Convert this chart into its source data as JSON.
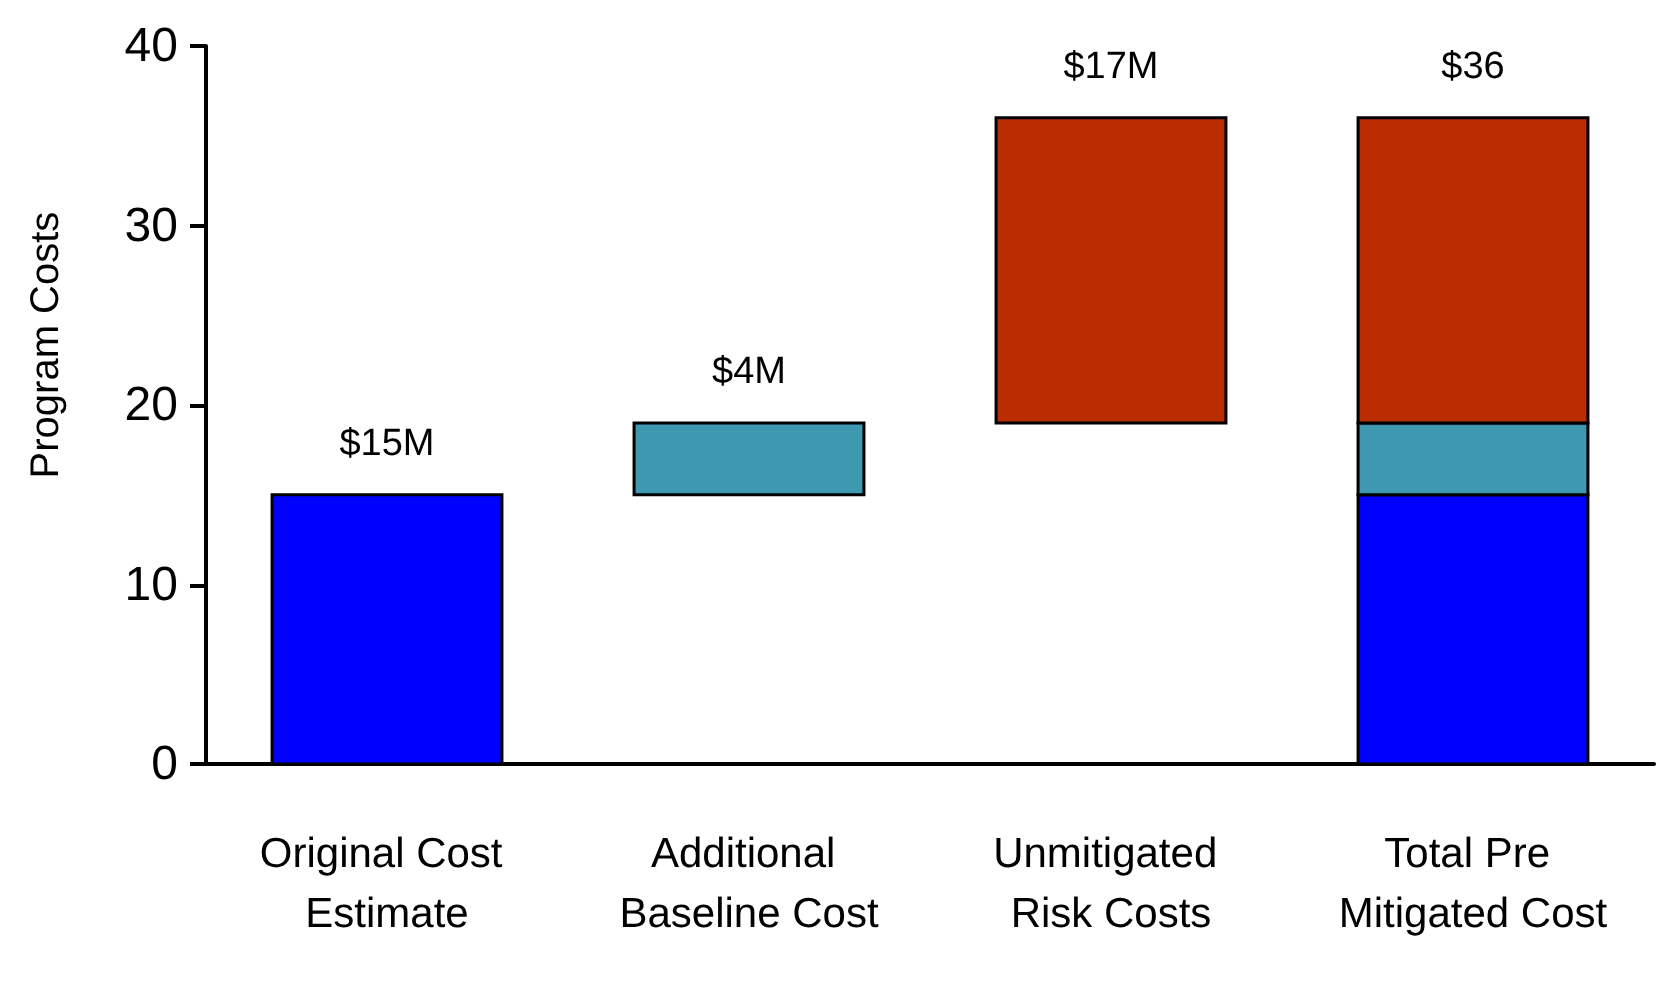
{
  "chart_data": {
    "type": "bar",
    "ylabel": "Program Costs",
    "categories": [
      "Original Cost Estimate",
      "Additional Baseline Cost",
      "Unmitigated Risk Costs",
      "Total Pre Mitigated Cost"
    ],
    "series": [
      {
        "color": "#0000ff",
        "values": [
          15,
          null,
          null,
          15
        ],
        "base": [
          0,
          null,
          null,
          0
        ],
        "value_labels": [
          "$15M",
          null,
          null,
          null
        ]
      },
      {
        "color": "#3e98b0",
        "values": [
          null,
          4,
          null,
          4
        ],
        "base": [
          null,
          15,
          null,
          15
        ],
        "value_labels": [
          null,
          "$4M",
          null,
          null
        ]
      },
      {
        "color": "#b82c00",
        "values": [
          null,
          null,
          17,
          17
        ],
        "base": [
          null,
          null,
          19,
          19
        ],
        "value_labels": [
          null,
          null,
          "$17M",
          null
        ]
      }
    ],
    "totals": [
      null,
      null,
      null,
      "$36"
    ],
    "ylim": [
      0,
      40
    ],
    "yticks": [
      0,
      10,
      20,
      30,
      40
    ],
    "grid": false
  }
}
